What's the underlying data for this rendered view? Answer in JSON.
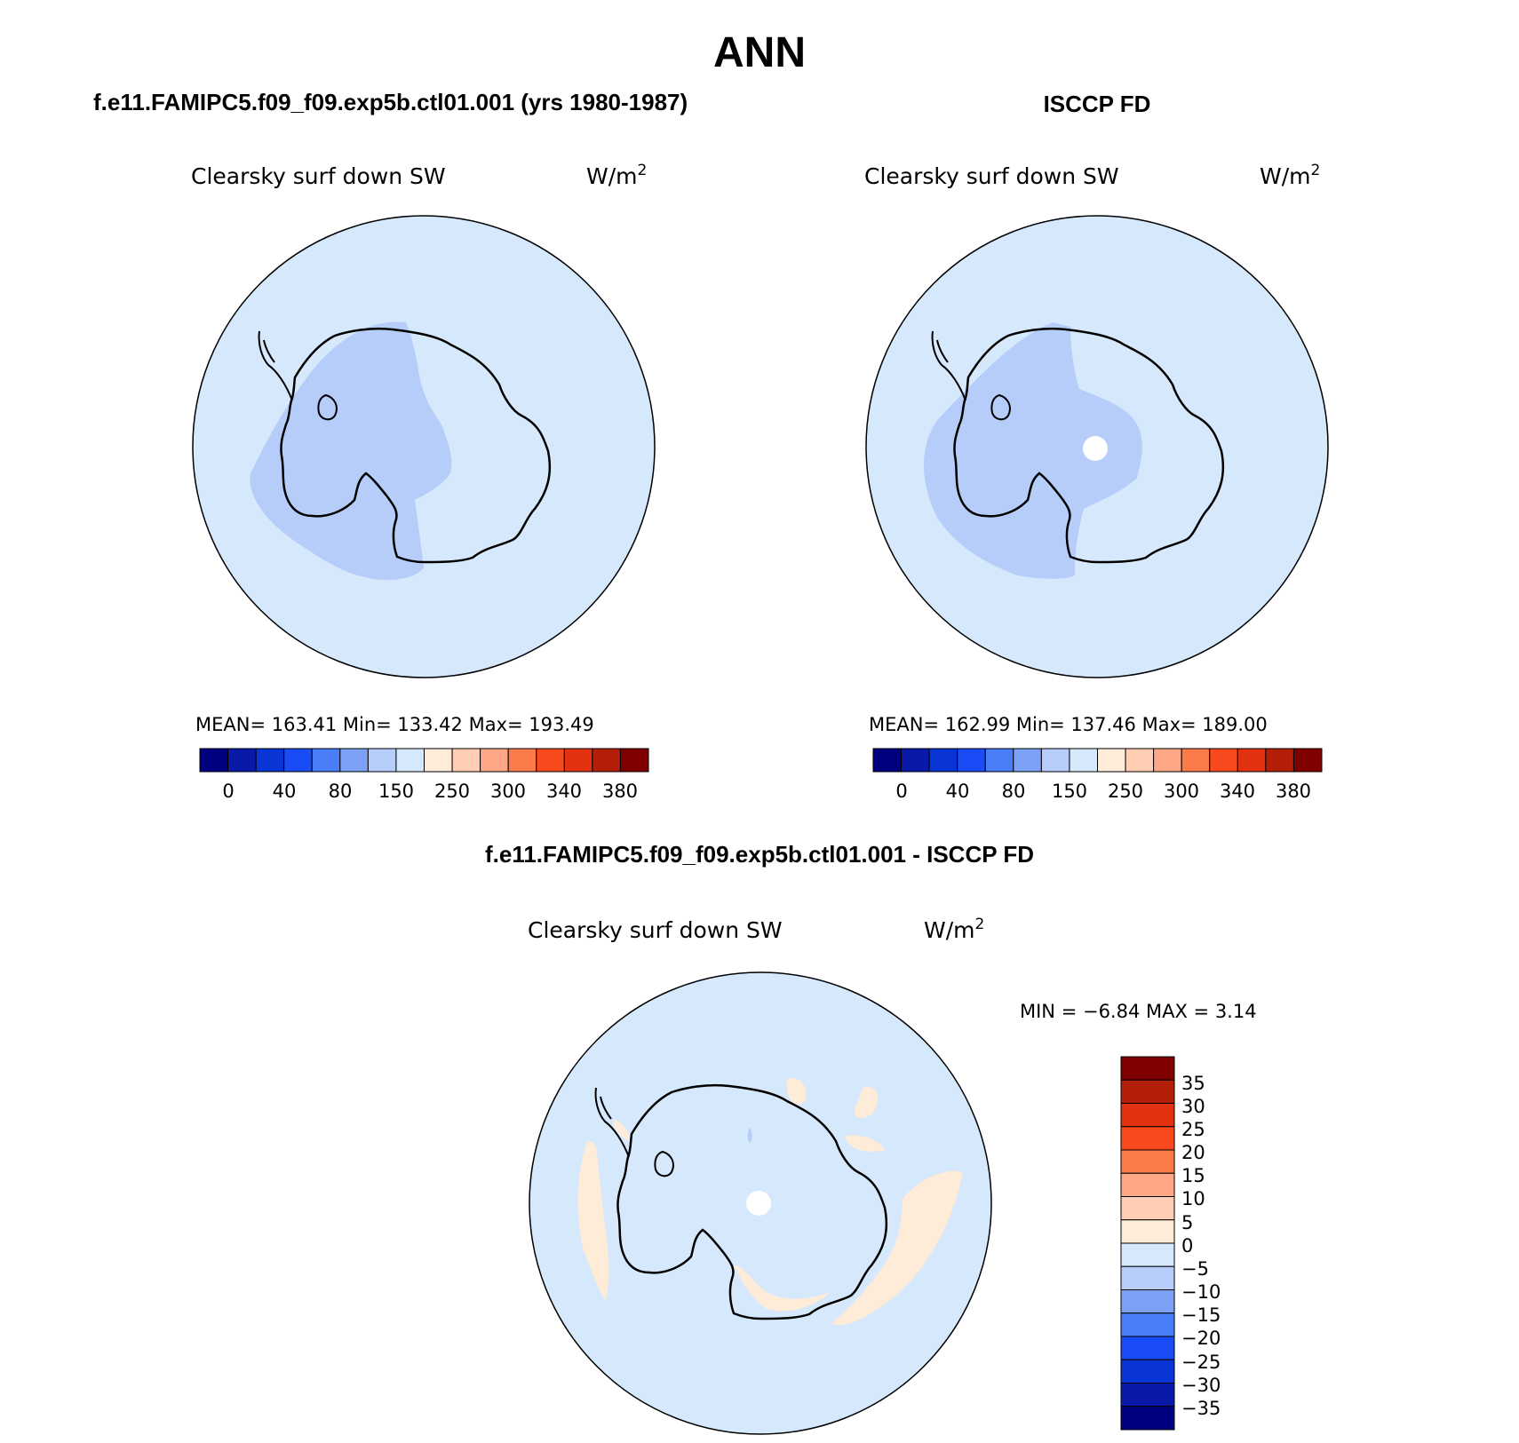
{
  "title": "ANN",
  "colors": {
    "ocean_bg": "#d6e8fb",
    "interior_blue": "#b6cdfa",
    "positive_anom": "#feebd8",
    "coast": "#000000",
    "pole_hole": "#ffffff"
  },
  "abs_scale_colors": [
    "#00007f",
    "#0a1aa8",
    "#0a35d6",
    "#1a4cf5",
    "#4a7ef8",
    "#7ea1f8",
    "#b6cdfa",
    "#d6e8fb",
    "#feebd8",
    "#fecdb4",
    "#fda786",
    "#fd7a4a",
    "#f94a1e",
    "#e23212",
    "#b41f0a",
    "#7f0000"
  ],
  "diff_scale_colors": [
    "#00007f",
    "#0a1aa8",
    "#0a35d6",
    "#1a4cf5",
    "#4a7ef8",
    "#7ea1f8",
    "#b6cdfa",
    "#d6e8fb",
    "#feebd8",
    "#fecdb4",
    "#fda786",
    "#fd7a4a",
    "#f94a1e",
    "#e23212",
    "#b41f0a",
    "#7f0000"
  ],
  "panels": {
    "model": {
      "header": "f.e11.FAMIPC5.f09_f09.exp5b.ctl01.001 (yrs 1980-1987)",
      "variable": "Clearsky  surf  down  SW",
      "units": "W/m",
      "units_exp": "2",
      "stats": "MEAN=  163.41    Min=  133.42    Max=  193.49",
      "ticks": [
        "0",
        "40",
        "80",
        "150",
        "250",
        "300",
        "340",
        "380"
      ]
    },
    "obs": {
      "header": "ISCCP FD",
      "variable": "Clearsky  surf  down  SW",
      "units": "W/m",
      "units_exp": "2",
      "stats": "MEAN=  162.99    Min=  137.46    Max=  189.00",
      "ticks": [
        "0",
        "40",
        "80",
        "150",
        "250",
        "300",
        "340",
        "380"
      ]
    },
    "diff": {
      "header": "f.e11.FAMIPC5.f09_f09.exp5b.ctl01.001 - ISCCP FD",
      "variable": "Clearsky  surf  down  SW",
      "units": "W/m",
      "units_exp": "2",
      "minmax": "MIN =    −6.84  MAX =      3.14",
      "ticks": [
        "35",
        "30",
        "25",
        "20",
        "15",
        "10",
        "5",
        "0",
        "−5",
        "−10",
        "−15",
        "−20",
        "−25",
        "−30",
        "−35"
      ]
    }
  }
}
